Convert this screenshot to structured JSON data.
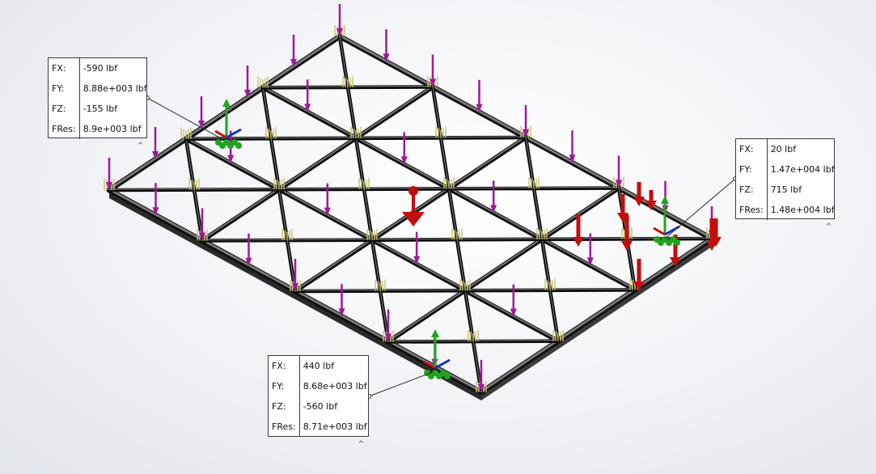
{
  "callouts": [
    {
      "name": "reaction-callout-top-left",
      "rows": [
        {
          "label": "FX:",
          "value": "-590 lbf"
        },
        {
          "label": "FY:",
          "value": "8.88e+003 lbf"
        },
        {
          "label": "FZ:",
          "value": "-155 lbf"
        },
        {
          "label": "FRes:",
          "value": "8.9e+003 lbf"
        }
      ]
    },
    {
      "name": "reaction-callout-right",
      "rows": [
        {
          "label": "FX:",
          "value": "20 lbf"
        },
        {
          "label": "FY:",
          "value": "1.47e+004 lbf"
        },
        {
          "label": "FZ:",
          "value": "715 lbf"
        },
        {
          "label": "FRes:",
          "value": "1.48e+004 lbf"
        }
      ]
    },
    {
      "name": "reaction-callout-bottom",
      "rows": [
        {
          "label": "FX:",
          "value": "440 lbf"
        },
        {
          "label": "FY:",
          "value": "8.68e+003 lbf"
        },
        {
          "label": "FZ:",
          "value": "-560 lbf"
        },
        {
          "label": "FRes:",
          "value": "8.71e+003 lbf"
        }
      ]
    }
  ],
  "colors": {
    "frame": "#1c1c1c",
    "load_arrow": "#a0189e",
    "red_force": "#c40d0d",
    "green_fixture": "#1ea51e",
    "axis_blue": "#1030c8",
    "node_yellow": "#c8c36a"
  },
  "icons": {
    "collapse": "chevron-up-icon",
    "load": "downward-load-arrow-icon",
    "fixture": "fixed-geometry-icon",
    "remote": "remote-load-icon"
  }
}
